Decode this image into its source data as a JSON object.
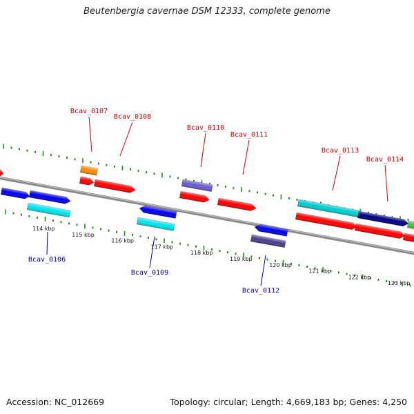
{
  "title": "Beutenbergia cavernae DSM 12333, complete genome",
  "footer": {
    "accession": "Accession: NC_012669",
    "topology": "Topology: circular; Length: 4,669,183 bp; Genes: 4,250"
  },
  "colors": {
    "top_label": "#cc0000",
    "bottom_label": "#0000aa",
    "backbone": "#8a8a8a",
    "tick": "#228b22"
  },
  "scale_labels": [
    "114 kbp",
    "115 kbp",
    "116 kbp",
    "117 kbp",
    "118 kbp",
    "119 kbp",
    "120 kbp",
    "121 kbp",
    "122 kbp",
    "123 kbp"
  ],
  "gene_labels_top": [
    "Bcav_0107",
    "Bcav_0108",
    "Bcav_0110",
    "Bcav_0111",
    "Bcav_0113",
    "Bcav_0114"
  ],
  "gene_labels_bottom": [
    "Bcav_0106",
    "Bcav_0109",
    "Bcav_0112"
  ],
  "features": [
    {
      "color": "#ff0000",
      "strand": "+",
      "shape": "arrow"
    },
    {
      "color": "#0000ee",
      "strand": "+",
      "shape": "arrow"
    },
    {
      "color": "#0000ee",
      "strand": "+",
      "shape": "arrow"
    },
    {
      "color": "#00e5ee",
      "strand": "-",
      "shape": "box"
    },
    {
      "color": "#ff8c00",
      "strand": "+",
      "shape": "box"
    },
    {
      "color": "#ff0000",
      "strand": "+",
      "shape": "arrow"
    },
    {
      "color": "#ff0000",
      "strand": "+",
      "shape": "arrow"
    },
    {
      "color": "#0000ee",
      "strand": "-",
      "shape": "arrow"
    },
    {
      "color": "#00e5ee",
      "strand": "-",
      "shape": "box"
    },
    {
      "color": "#6a5acd",
      "strand": "+",
      "shape": "box"
    },
    {
      "color": "#ff0000",
      "strand": "+",
      "shape": "arrow"
    },
    {
      "color": "#ff0000",
      "strand": "+",
      "shape": "arrow"
    },
    {
      "color": "#0000ee",
      "strand": "-",
      "shape": "arrow"
    },
    {
      "color": "#483d8b",
      "strand": "-",
      "shape": "box"
    },
    {
      "color": "#00cdcd",
      "strand": "+",
      "shape": "box"
    },
    {
      "color": "#000080",
      "strand": "+",
      "shape": "arrow"
    },
    {
      "color": "#32cd32",
      "strand": "+",
      "shape": "box"
    },
    {
      "color": "#ff0000",
      "strand": "+",
      "shape": "arrow"
    },
    {
      "color": "#ff0000",
      "strand": "+",
      "shape": "arrow"
    },
    {
      "color": "#ff0000",
      "strand": "+",
      "shape": "arrow"
    }
  ]
}
